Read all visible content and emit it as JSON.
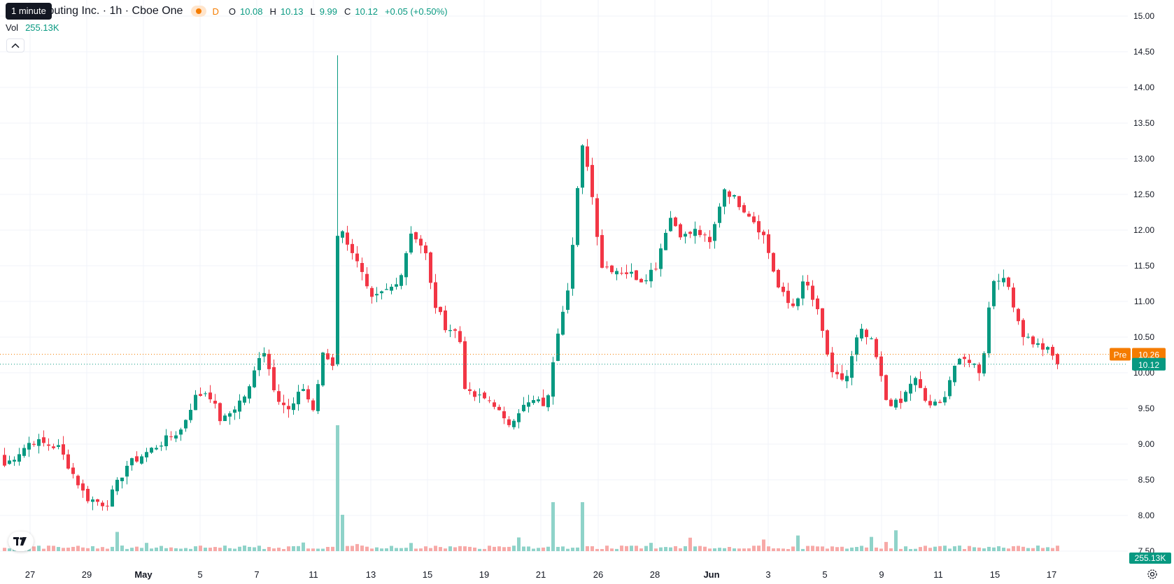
{
  "legend": {
    "title": "um Computing Inc. · 1h · Cboe One",
    "session_badge": "D",
    "open_key": "O",
    "open": "10.08",
    "high_key": "H",
    "high": "10.13",
    "low_key": "L",
    "low": "9.99",
    "close_key": "C",
    "close": "10.12",
    "change": "+0.05 (+0.50%)"
  },
  "tooltip": "1 minute",
  "volume": {
    "label": "Vol",
    "value": "255.13K"
  },
  "price_labels": {
    "pre_tag": "Pre",
    "pre_value": "10.26",
    "last_value": "10.12",
    "volume_value": "255.13K"
  },
  "icons": {
    "collapse": "chevron-up-icon",
    "logo": "tradingview-logo-icon",
    "settings": "settings-gear-icon",
    "session": "sun-icon"
  },
  "colors": {
    "up": "#089981",
    "down": "#f23645",
    "up_volume": "#8fd3c9",
    "down_volume": "#f7a9a7",
    "pre_market": "#f57c00",
    "grid": "#f0f3fa"
  },
  "chart_data": {
    "type": "candlestick",
    "timeframe": "1h",
    "ylim": [
      7.5,
      15.0
    ],
    "yticks": [
      "7.50",
      "8.00",
      "8.50",
      "9.00",
      "9.50",
      "10.00",
      "10.50",
      "11.00",
      "11.50",
      "12.00",
      "12.50",
      "13.00",
      "13.50",
      "14.00",
      "14.50",
      "15.00"
    ],
    "xticks": [
      {
        "label": "27",
        "bold": false
      },
      {
        "label": "29",
        "bold": false
      },
      {
        "label": "May",
        "bold": true
      },
      {
        "label": "5",
        "bold": false
      },
      {
        "label": "7",
        "bold": false
      },
      {
        "label": "11",
        "bold": false
      },
      {
        "label": "13",
        "bold": false
      },
      {
        "label": "15",
        "bold": false
      },
      {
        "label": "19",
        "bold": false
      },
      {
        "label": "21",
        "bold": false
      },
      {
        "label": "26",
        "bold": false
      },
      {
        "label": "28",
        "bold": false
      },
      {
        "label": "Jun",
        "bold": true
      },
      {
        "label": "3",
        "bold": false
      },
      {
        "label": "5",
        "bold": false
      },
      {
        "label": "9",
        "bold": false
      },
      {
        "label": "11",
        "bold": false
      },
      {
        "label": "15",
        "bold": false
      },
      {
        "label": "17",
        "bold": false
      }
    ],
    "path": [
      [
        0,
        8.7
      ],
      [
        2,
        9.05
      ],
      [
        4,
        8.95
      ],
      [
        6,
        8.25
      ],
      [
        7.5,
        8.15
      ],
      [
        9,
        8.7
      ],
      [
        11,
        8.95
      ],
      [
        13,
        9.2
      ],
      [
        14,
        9.65
      ],
      [
        15,
        9.75
      ],
      [
        16,
        9.3
      ],
      [
        18,
        9.75
      ],
      [
        19,
        10.4
      ],
      [
        20,
        9.7
      ],
      [
        21,
        9.45
      ],
      [
        22,
        9.8
      ],
      [
        22.8,
        9.45
      ],
      [
        23.4,
        10.25
      ],
      [
        23.8,
        10.2
      ],
      [
        24.4,
        10.05
      ],
      [
        24.6,
        12.7
      ],
      [
        25,
        11.8
      ],
      [
        25.8,
        11.7
      ],
      [
        27,
        11.0
      ],
      [
        29,
        11.25
      ],
      [
        30,
        12.0
      ],
      [
        31,
        11.7
      ],
      [
        31.6,
        11.0
      ],
      [
        32.5,
        10.65
      ],
      [
        33.5,
        10.55
      ],
      [
        34,
        9.7
      ],
      [
        36,
        9.6
      ],
      [
        37,
        9.25
      ],
      [
        38,
        9.5
      ],
      [
        39,
        9.6
      ],
      [
        40,
        9.55
      ],
      [
        40.6,
        10.45
      ],
      [
        41.5,
        11.2
      ],
      [
        42,
        12.0
      ],
      [
        42.5,
        13.2
      ],
      [
        43,
        12.9
      ],
      [
        44,
        11.5
      ],
      [
        46,
        11.4
      ],
      [
        47,
        11.3
      ],
      [
        48,
        11.5
      ],
      [
        49,
        12.2
      ],
      [
        50,
        11.9
      ],
      [
        51,
        12.0
      ],
      [
        52,
        11.8
      ],
      [
        53,
        12.6
      ],
      [
        54,
        12.4
      ],
      [
        55,
        12.2
      ],
      [
        56,
        11.9
      ],
      [
        57,
        11.2
      ],
      [
        58,
        10.9
      ],
      [
        59,
        11.3
      ],
      [
        60,
        10.8
      ],
      [
        61,
        9.95
      ],
      [
        62,
        9.9
      ],
      [
        63,
        10.6
      ],
      [
        64,
        10.4
      ],
      [
        65,
        9.6
      ],
      [
        66,
        9.55
      ],
      [
        67,
        9.95
      ],
      [
        68,
        9.55
      ],
      [
        69,
        9.55
      ],
      [
        70,
        10.1
      ],
      [
        71,
        10.2
      ],
      [
        72,
        10.0
      ],
      [
        72.6,
        11.0
      ],
      [
        73,
        11.4
      ],
      [
        74,
        11.2
      ],
      [
        75,
        10.55
      ],
      [
        76,
        10.4
      ],
      [
        77,
        10.3
      ],
      [
        77.6,
        10.12
      ]
    ],
    "series": [
      {
        "name": "",
        "kind": "volume"
      }
    ]
  }
}
